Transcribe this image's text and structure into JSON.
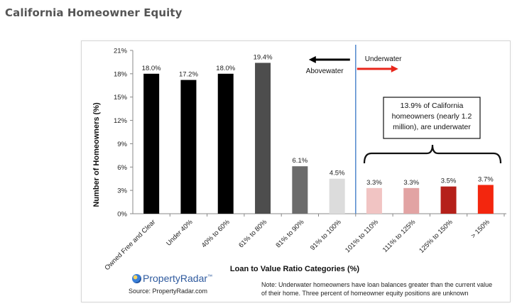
{
  "page": {
    "title": "California Homeowner Equity"
  },
  "logo": {
    "name": "PropertyRadar",
    "trademark": "™"
  },
  "source": "Source: PropertyRadar.com",
  "note": "Note: Underwater homeowners have loan balances greater than the current value of their home. Three percent of homeowner equity positions are unknown",
  "annotations": {
    "underwater": "Underwater",
    "abovewater": "Abovewater",
    "callout": [
      "13.9% of California",
      "homeowners (nearly 1.2",
      "million), are underwater"
    ]
  },
  "colors": {
    "divider": "#5b8fd0",
    "arrow_underwater": "#e8261b",
    "arrow_abovewater": "#000000"
  },
  "chart_data": {
    "type": "bar",
    "xlabel": "Loan to Value Ratio Categories (%)",
    "ylabel": "Number of Homeowners (%)",
    "ylim": [
      0,
      21
    ],
    "yticks": [
      "0%",
      "3%",
      "6%",
      "9%",
      "12%",
      "15%",
      "18%",
      "21%"
    ],
    "grid": false,
    "categories": [
      "Owned Free and Clear",
      "Under 40%",
      "40% to 60%",
      "61% to 80%",
      "81% to 90%",
      "91% to 100%",
      "101% to 110%",
      "111% to 125%",
      "125% to 150%",
      "> 150%"
    ],
    "values": [
      18.0,
      17.2,
      18.0,
      19.4,
      6.1,
      4.5,
      3.3,
      3.3,
      3.5,
      3.7
    ],
    "value_labels": [
      "18.0%",
      "17.2%",
      "18.0%",
      "19.4%",
      "6.1%",
      "4.5%",
      "3.3%",
      "3.3%",
      "3.5%",
      "3.7%"
    ],
    "bar_colors": [
      "#000000",
      "#000000",
      "#000000",
      "#4d4d4d",
      "#6b6b6b",
      "#dcdcdc",
      "#f1c4c3",
      "#e2a3a3",
      "#b5201a",
      "#f3260e"
    ]
  }
}
